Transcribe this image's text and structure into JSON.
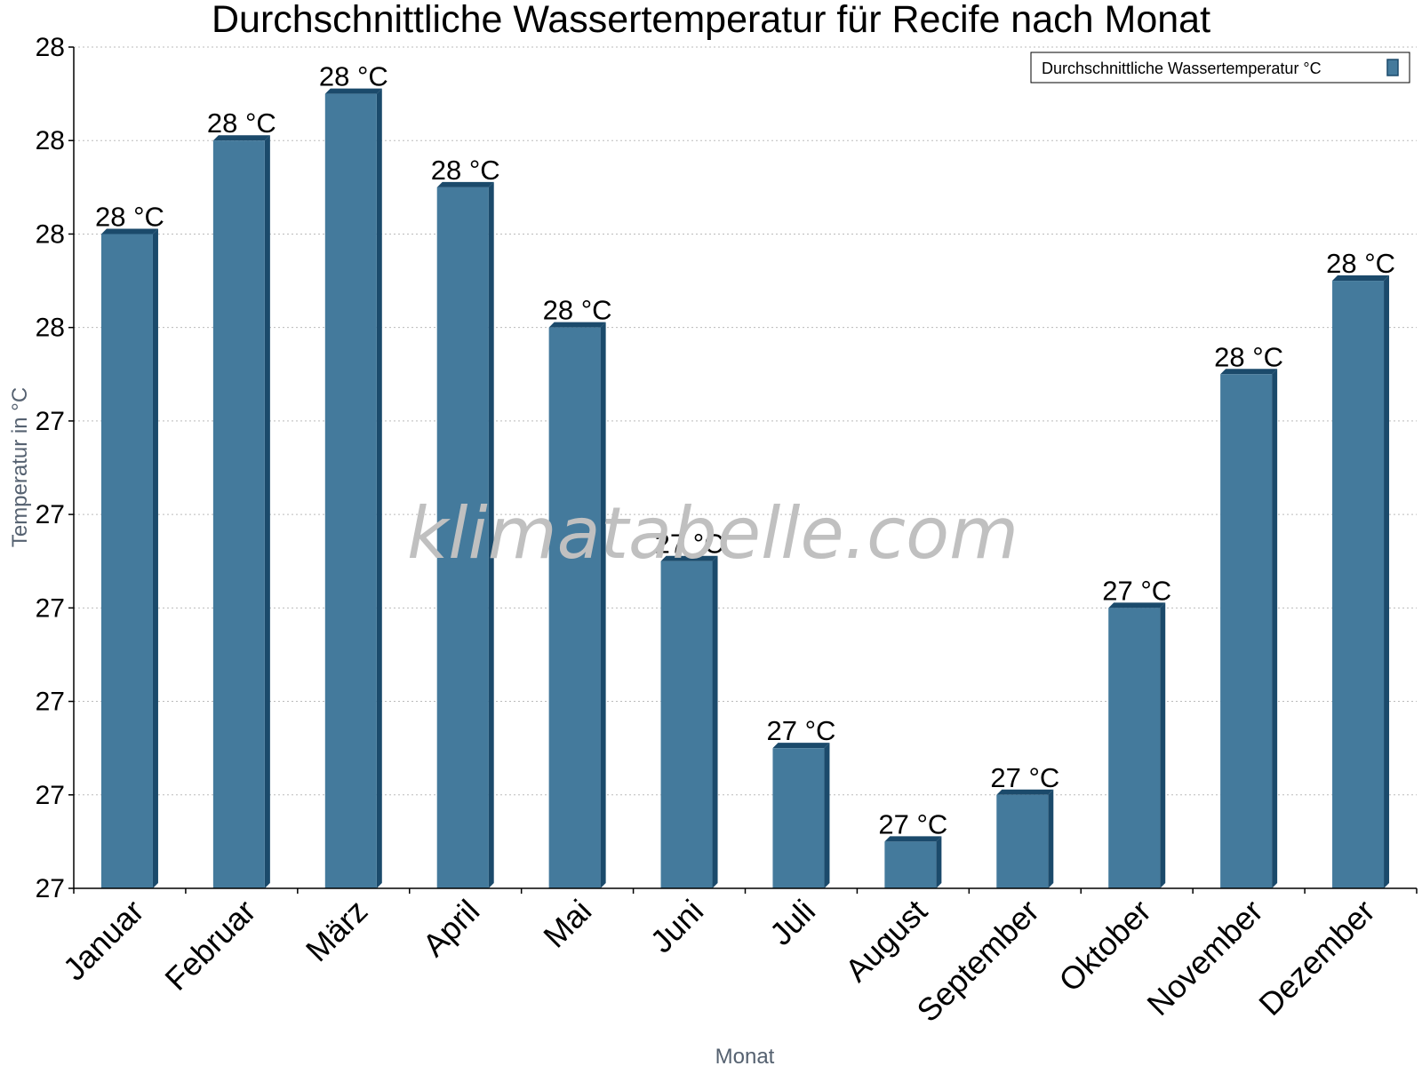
{
  "chart_data": {
    "type": "bar",
    "title": "Durchschnittliche Wassertemperatur für Recife nach Monat",
    "xlabel": "Monat",
    "ylabel": "Temperatur in °C",
    "categories": [
      "Januar",
      "Februar",
      "März",
      "April",
      "Mai",
      "Juni",
      "Juli",
      "August",
      "September",
      "Oktober",
      "November",
      "Dezember"
    ],
    "series": [
      {
        "name": "Durchschnittliche Wassertemperatur °C",
        "values": [
          27.7,
          27.8,
          27.85,
          27.75,
          27.6,
          27.35,
          27.15,
          27.05,
          27.1,
          27.3,
          27.55,
          27.65
        ],
        "labels": [
          "28 °C",
          "28 °C",
          "28 °C",
          "28 °C",
          "28 °C",
          "27 °C",
          "27 °C",
          "27 °C",
          "27 °C",
          "27 °C",
          "28 °C",
          "28 °C"
        ],
        "color": "#447a9c"
      }
    ],
    "ylim": [
      27.0,
      27.9
    ],
    "yticks": [
      27.0,
      27.1,
      27.2,
      27.3,
      27.4,
      27.5,
      27.6,
      27.7,
      27.8,
      27.9
    ],
    "ytick_labels": [
      "27",
      "27",
      "27",
      "27",
      "27",
      "27",
      "28",
      "28",
      "28",
      "28"
    ],
    "grid": true,
    "legend": "top-right"
  },
  "watermark": "klimatabelle.com",
  "colors": {
    "bar_face": "#447a9c",
    "bar_side": "#1b4a6b",
    "grid": "#bbbbbb"
  }
}
